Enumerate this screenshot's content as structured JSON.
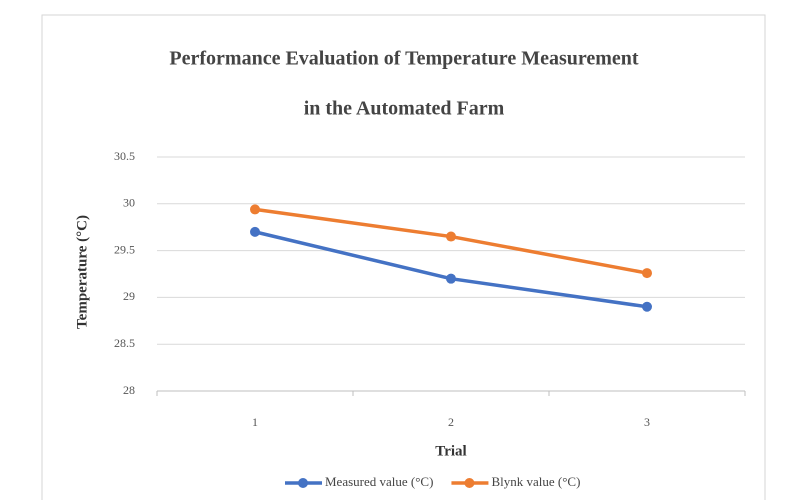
{
  "chart_data": {
    "type": "line",
    "title": [
      "Performance Evaluation of Temperature Measurement",
      "in the Automated Farm"
    ],
    "x_label": "Trial",
    "y_label": "Temperature (°C)",
    "categories": [
      "1",
      "2",
      "3"
    ],
    "series": [
      {
        "name": "Measured value (°C)",
        "color": "#4472c4",
        "values": [
          29.7,
          29.2,
          28.9
        ]
      },
      {
        "name": "Blynk value (°C)",
        "color": "#ed7d31",
        "values": [
          29.94,
          29.65,
          29.26
        ]
      }
    ],
    "ylim": [
      28,
      30.5
    ],
    "yticks": [
      28,
      28.5,
      29,
      29.5,
      30,
      30.5
    ],
    "grid": true,
    "legend": "bottom"
  }
}
